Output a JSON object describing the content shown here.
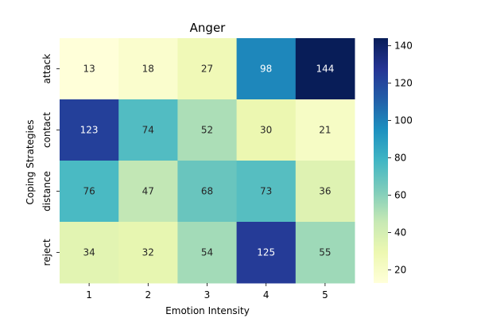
{
  "chart_data": {
    "type": "heatmap",
    "title": "Anger",
    "xlabel": "Emotion Intensity",
    "ylabel": "Coping Strategies",
    "x_categories": [
      "1",
      "2",
      "3",
      "4",
      "5"
    ],
    "y_categories": [
      "attack",
      "contact",
      "distance",
      "reject"
    ],
    "values": [
      [
        13,
        18,
        27,
        98,
        144
      ],
      [
        123,
        74,
        52,
        30,
        21
      ],
      [
        76,
        47,
        68,
        73,
        36
      ],
      [
        34,
        32,
        54,
        125,
        55
      ]
    ],
    "colormap": "YlGnBu",
    "colorbar": {
      "range": [
        13,
        144
      ],
      "ticks": [
        20,
        40,
        60,
        80,
        100,
        120,
        140
      ]
    },
    "annotations": true,
    "grid": false
  }
}
